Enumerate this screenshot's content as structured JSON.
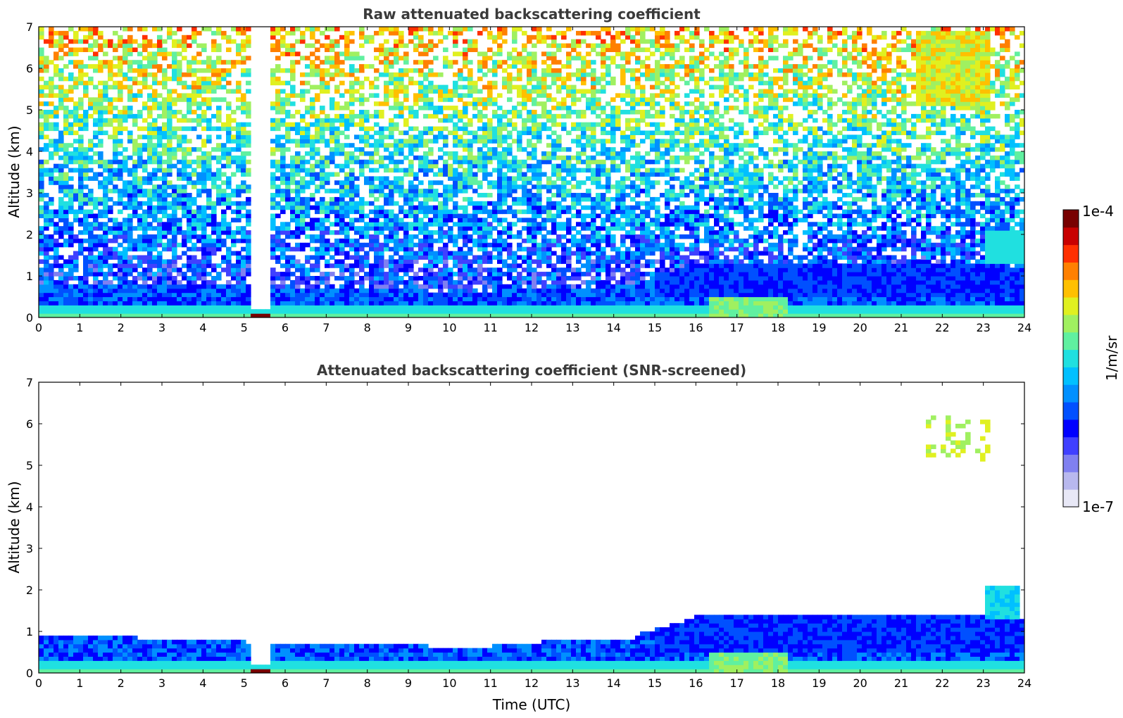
{
  "chart_data": [
    {
      "type": "heatmap",
      "title": "Raw attenuated backscattering coefficient",
      "xlabel": "",
      "ylabel": "Altitude (km)",
      "xlim": [
        0,
        24
      ],
      "ylim": [
        0,
        7
      ],
      "x_ticks": [
        "0",
        "1",
        "2",
        "3",
        "4",
        "5",
        "6",
        "7",
        "8",
        "9",
        "10",
        "11",
        "12",
        "13",
        "14",
        "15",
        "16",
        "17",
        "18",
        "19",
        "20",
        "21",
        "22",
        "23",
        "24"
      ],
      "y_ticks": [
        "0",
        "1",
        "2",
        "3",
        "4",
        "5",
        "6",
        "7"
      ],
      "grid": false,
      "features": [
        {
          "type": "boundary_layer",
          "x_start": 0,
          "x_end": 15,
          "top_km": 0.8
        },
        {
          "type": "boundary_layer",
          "x_start": 15,
          "x_end": 24,
          "top_km": 1.3
        },
        {
          "type": "clear_column",
          "x_center": 5.35,
          "top_km": 7,
          "bottom_km": 0.2
        },
        {
          "type": "near_surface_strong_return",
          "x_center": 5.35,
          "altitude_km": 0.05
        },
        {
          "type": "aerosol_layer",
          "x_start": 16.3,
          "x_end": 18.2,
          "bottom_km": 0.1,
          "top_km": 0.7
        },
        {
          "type": "elevated_layer",
          "x_start": 21.4,
          "x_end": 23.2,
          "bottom_km": 5.1,
          "top_km": 6.9
        }
      ]
    },
    {
      "type": "heatmap",
      "title": "Attenuated backscattering coefficient (SNR-screened)",
      "xlabel": "Time (UTC)",
      "ylabel": "Altitude (km)",
      "xlim": [
        0,
        24
      ],
      "ylim": [
        0,
        7
      ],
      "x_ticks": [
        "0",
        "1",
        "2",
        "3",
        "4",
        "5",
        "6",
        "7",
        "8",
        "9",
        "10",
        "11",
        "12",
        "13",
        "14",
        "15",
        "16",
        "17",
        "18",
        "19",
        "20",
        "21",
        "22",
        "23",
        "24"
      ],
      "y_ticks": [
        "0",
        "1",
        "2",
        "3",
        "4",
        "5",
        "6",
        "7"
      ],
      "grid": false,
      "features": [
        {
          "type": "boundary_layer",
          "x_start": 0,
          "x_end": 15,
          "top_km": 0.85
        },
        {
          "type": "boundary_layer",
          "x_start": 15,
          "x_end": 24,
          "top_km": 1.35
        },
        {
          "type": "clear_column",
          "x_center": 5.35,
          "top_km": 0.85,
          "bottom_km": 0.15
        },
        {
          "type": "near_surface_strong_return",
          "x_center": 5.35,
          "altitude_km": 0.05
        },
        {
          "type": "aerosol_layer",
          "x_start": 16.3,
          "x_end": 18.2,
          "bottom_km": 0.1,
          "top_km": 0.7
        },
        {
          "type": "elevated_layer",
          "x_start": 21.6,
          "x_end": 23.2,
          "bottom_km": 5.1,
          "top_km": 6.2
        },
        {
          "type": "elevated_layer",
          "x_start": 23.0,
          "x_end": 23.9,
          "bottom_km": 1.3,
          "top_km": 2.1
        }
      ]
    }
  ],
  "colorbar": {
    "label": "1/m/sr",
    "max_label": "1e-4",
    "min_label": "1e-7",
    "scale": "log",
    "colormap": "jet",
    "colors": [
      "#e8e8f6",
      "#b8b8ee",
      "#8080f0",
      "#4040ff",
      "#0000ff",
      "#0050ff",
      "#0090ff",
      "#00c0ff",
      "#20e0e0",
      "#60f0a0",
      "#a0f060",
      "#e0f020",
      "#ffc000",
      "#ff8000",
      "#ff3000",
      "#c80000",
      "#780000"
    ]
  }
}
